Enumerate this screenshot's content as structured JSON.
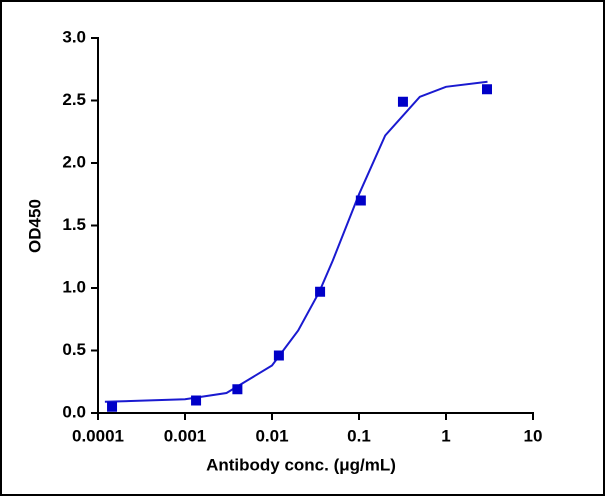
{
  "chart_data": {
    "type": "scatter",
    "x_label": "Antibody conc. (μg/mL)",
    "y_label": "OD450",
    "xscale": "log",
    "xlim": [
      0.0001,
      10
    ],
    "xticks": [
      0.0001,
      0.001,
      0.01,
      0.1,
      1,
      10
    ],
    "ylim": [
      0,
      3
    ],
    "yticks": [
      {
        "value": 0,
        "label": "0.0"
      },
      {
        "value": 0.5,
        "label": "0.5"
      },
      {
        "value": 1,
        "label": "1.0"
      },
      {
        "value": 1.5,
        "label": "1.5"
      },
      {
        "value": 2,
        "label": "2.0"
      },
      {
        "value": 2.5,
        "label": "2.5"
      },
      {
        "value": 3,
        "label": "3.0"
      }
    ],
    "grid": false,
    "series": [
      {
        "color": "#0000c8",
        "marker": "square",
        "x": [
          0.000145,
          0.00134,
          0.004,
          0.012,
          0.0357,
          0.105,
          0.32,
          2.96
        ],
        "values": [
          0.05,
          0.1,
          0.19,
          0.46,
          0.97,
          1.7,
          2.49,
          2.59
        ]
      },
      {
        "color": "#1a1ad0",
        "marker": "line",
        "x": [
          0.00012,
          0.001,
          0.003,
          0.01,
          0.02,
          0.035,
          0.05,
          0.1,
          0.2,
          0.5,
          1,
          3
        ],
        "values": [
          0.09,
          0.11,
          0.16,
          0.38,
          0.66,
          0.97,
          1.22,
          1.75,
          2.22,
          2.53,
          2.61,
          2.65
        ]
      }
    ]
  }
}
